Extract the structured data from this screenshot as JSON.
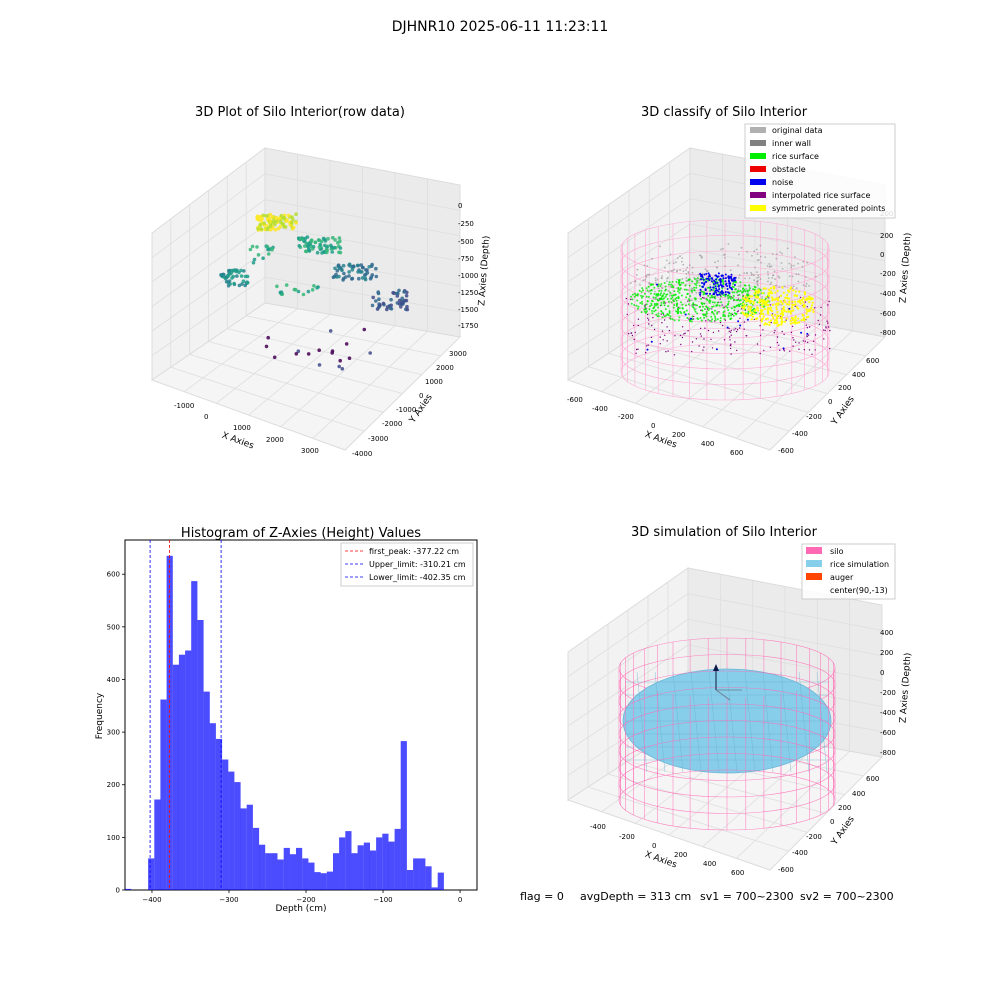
{
  "figure_title": "DJHNR10 2025-06-11 11:23:11",
  "footer": {
    "flag": "flag = 0",
    "avg_depth": "avgDepth = 313 cm",
    "sv1": "sv1 = 700~2300",
    "sv2": "sv2 = 700~2300"
  },
  "chart_data": [
    {
      "type": "scatter3d",
      "title": "3D Plot of Silo Interior(row data)",
      "xlabel": "X Axies",
      "ylabel": "Y Axies",
      "zlabel": "Z Axies (Depth)",
      "x_ticks": [
        "-1000",
        "0",
        "1000",
        "2000",
        "3000"
      ],
      "y_ticks": [
        "-4000",
        "-3000",
        "-2000",
        "-1000",
        "0",
        "1000",
        "2000",
        "3000"
      ],
      "z_ticks": [
        "0",
        "-250",
        "-500",
        "-750",
        "-1000",
        "-1250",
        "-1500",
        "-1750"
      ],
      "colormap": "viridis"
    },
    {
      "type": "scatter3d",
      "title": "3D classify of Silo Interior",
      "xlabel": "X Axies",
      "ylabel": "Y Axies",
      "zlabel": "Z Axies (Depth)",
      "x_ticks": [
        "-600",
        "-400",
        "-200",
        "0",
        "200",
        "400",
        "600"
      ],
      "y_ticks": [
        "-600",
        "-400",
        "-200",
        "0",
        "200",
        "400",
        "600"
      ],
      "z_ticks": [
        "200",
        "0",
        "-200",
        "-400",
        "-600",
        "-800"
      ],
      "legend_position": "top-right",
      "legend": [
        {
          "label": "original data",
          "color": "#b0b0b0"
        },
        {
          "label": "inner wall",
          "color": "#808080"
        },
        {
          "label": "rice surface",
          "color": "#00ee00"
        },
        {
          "label": "obstacle",
          "color": "#ee0000"
        },
        {
          "label": "noise",
          "color": "#0000ee"
        },
        {
          "label": "interpolated rice surface",
          "color": "#800080"
        },
        {
          "label": "symmetric generated points",
          "color": "#ffff00"
        }
      ]
    },
    {
      "type": "bar",
      "title": "Histogram of Z-Axies (Height) Values",
      "xlabel": "Depth (cm)",
      "ylabel": "Frequency",
      "xlim": [
        -435,
        22
      ],
      "ylim": [
        0,
        665
      ],
      "x_ticks": [
        -400,
        -300,
        -200,
        -100,
        0
      ],
      "y_ticks": [
        0,
        100,
        200,
        300,
        400,
        500,
        600
      ],
      "bar_color": "#0000ff",
      "bin_start": -405,
      "bin_width": 8,
      "values": [
        60,
        172,
        362,
        635,
        428,
        447,
        455,
        587,
        513,
        377,
        317,
        287,
        248,
        225,
        205,
        155,
        162,
        118,
        86,
        70,
        70,
        58,
        80,
        68,
        80,
        60,
        52,
        34,
        32,
        35,
        70,
        100,
        112,
        70,
        85,
        90,
        75,
        100,
        107,
        92,
        116,
        283,
        38,
        60,
        60,
        45,
        5,
        33
      ],
      "extra_bins": [
        {
          "x": -435,
          "width": 8,
          "value": 2
        }
      ],
      "vlines": [
        {
          "x": -377.22,
          "color": "#ff0000",
          "label": "first_peak: -377.22 cm"
        },
        {
          "x": -310.21,
          "color": "#0000ff",
          "label": "Upper_limit: -310.21 cm"
        },
        {
          "x": -402.35,
          "color": "#0000ff",
          "label": "Lower_limit: -402.35 cm"
        }
      ],
      "legend_position": "top-right"
    },
    {
      "type": "surface3d",
      "title": "3D simulation of Silo Interior",
      "xlabel": "X Axies",
      "ylabel": "Y Axies",
      "zlabel": "Z Axies (Depth)",
      "x_ticks": [
        "-400",
        "-200",
        "0",
        "200",
        "400",
        "600"
      ],
      "y_ticks": [
        "-600",
        "-400",
        "-200",
        "0",
        "200",
        "400",
        "600"
      ],
      "z_ticks": [
        "400",
        "200",
        "0",
        "-200",
        "-400",
        "-600",
        "-800"
      ],
      "legend_position": "top-right",
      "legend": [
        {
          "label": "silo",
          "color": "#ff69b4"
        },
        {
          "label": "rice simulation",
          "color": "#87ceeb"
        },
        {
          "label": "auger",
          "color": "#ff4500"
        },
        {
          "label": "center(90,-13)",
          "color": "none"
        }
      ]
    }
  ]
}
